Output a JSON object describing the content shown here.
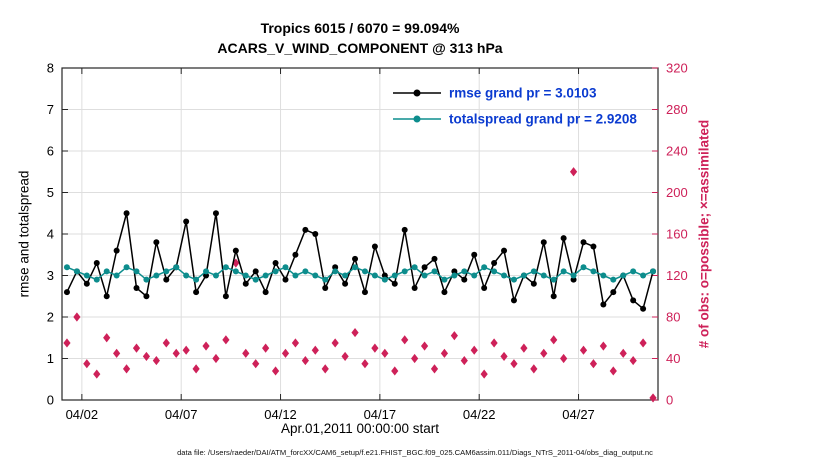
{
  "title": {
    "line1": "Tropics 6015 / 6070 = 99.094%",
    "line2": "ACARS_V_WIND_COMPONENT @ 313 hPa"
  },
  "footer": "data file: /Users/raeder/DAI/ATM_forcXX/CAM6_setup/f.e21.FHIST_BGC.f09_025.CAM6assim.011/Diags_NTrS_2011-04/obs_diag_output.nc",
  "colors": {
    "rmse": "#000000",
    "totalspread": "#0d8d8d",
    "obs": "#CE2159",
    "legend_text": "#0b3bd0",
    "grid": "#dedede",
    "axis": "#262626"
  },
  "legend": {
    "entries": [
      {
        "label": "rmse grand pr = 3.0103",
        "color": "#000000"
      },
      {
        "label": "totalspread grand pr = 2.9208",
        "color": "#0d8d8d"
      }
    ]
  },
  "chart_data": {
    "type": "line",
    "title": "Tropics 6015 / 6070 = 99.094%",
    "subtitle": "ACARS_V_WIND_COMPONENT @ 313 hPa",
    "xlabel": "Apr.01,2011 00:00:00 start",
    "ylabel_left": "rmse and totalspread",
    "ylabel_right": "# of obs: o=possible; ×=assimilated",
    "xlim_days_of_april": [
      1,
      31
    ],
    "x_ticks": {
      "values": [
        2,
        7,
        12,
        17,
        22,
        27
      ],
      "labels": [
        "04/02",
        "04/07",
        "04/12",
        "04/17",
        "04/22",
        "04/27"
      ]
    },
    "ylim_left": [
      0,
      8
    ],
    "yticks_left": [
      0,
      1,
      2,
      3,
      4,
      5,
      6,
      7,
      8
    ],
    "ylim_right": [
      0,
      320
    ],
    "yticks_right": [
      0,
      40,
      80,
      120,
      160,
      200,
      240,
      280,
      320
    ],
    "grid": true,
    "legend_position": "top-center-inside",
    "x_days": [
      1.25,
      1.75,
      2.25,
      2.75,
      3.25,
      3.75,
      4.25,
      4.75,
      5.25,
      5.75,
      6.25,
      6.75,
      7.25,
      7.75,
      8.25,
      8.75,
      9.25,
      9.75,
      10.25,
      10.75,
      11.25,
      11.75,
      12.25,
      12.75,
      13.25,
      13.75,
      14.25,
      14.75,
      15.25,
      15.75,
      16.25,
      16.75,
      17.25,
      17.75,
      18.25,
      18.75,
      19.25,
      19.75,
      20.25,
      20.75,
      21.25,
      21.75,
      22.25,
      22.75,
      23.25,
      23.75,
      24.25,
      24.75,
      25.25,
      25.75,
      26.25,
      26.75,
      27.25,
      27.75,
      28.25,
      28.75,
      29.25,
      29.75,
      30.25,
      30.75
    ],
    "series": [
      {
        "name": "rmse",
        "grand_pr": 3.0103,
        "color": "#000000",
        "values": [
          2.6,
          3.1,
          2.8,
          3.3,
          2.5,
          3.6,
          4.5,
          2.7,
          2.5,
          3.8,
          2.9,
          3.2,
          4.3,
          2.6,
          3.0,
          4.5,
          2.5,
          3.6,
          2.8,
          3.1,
          2.6,
          3.3,
          2.9,
          3.5,
          4.1,
          4.0,
          2.7,
          3.2,
          2.8,
          3.4,
          2.6,
          3.7,
          3.0,
          2.8,
          4.1,
          2.7,
          3.2,
          3.4,
          2.6,
          3.1,
          2.9,
          3.5,
          2.7,
          3.3,
          3.6,
          2.4,
          3.0,
          2.8,
          3.8,
          2.5,
          3.9,
          2.9,
          3.8,
          3.7,
          2.3,
          2.6,
          3.0,
          2.4,
          2.2,
          3.1
        ]
      },
      {
        "name": "totalspread",
        "grand_pr": 2.9208,
        "color": "#0d8d8d",
        "values": [
          3.2,
          3.1,
          3.0,
          2.9,
          3.1,
          3.0,
          3.2,
          3.1,
          2.9,
          3.0,
          3.1,
          3.2,
          3.0,
          2.9,
          3.1,
          3.0,
          3.2,
          3.1,
          3.0,
          2.9,
          3.0,
          3.1,
          3.2,
          3.0,
          3.1,
          3.0,
          2.9,
          3.1,
          3.0,
          3.2,
          3.1,
          3.0,
          2.9,
          3.0,
          3.1,
          3.2,
          3.0,
          3.1,
          2.9,
          3.0,
          3.1,
          3.0,
          3.2,
          3.1,
          3.0,
          2.9,
          3.0,
          3.1,
          3.0,
          2.9,
          3.1,
          3.0,
          3.2,
          3.1,
          3.0,
          2.9,
          3.0,
          3.1,
          3.0,
          3.1
        ]
      }
    ],
    "obs_assimilated": {
      "marker": "diamond",
      "color": "#CE2159",
      "axis": "right",
      "counts": [
        55,
        80,
        35,
        25,
        60,
        45,
        30,
        50,
        42,
        38,
        55,
        45,
        48,
        30,
        52,
        40,
        58,
        132,
        45,
        35,
        50,
        28,
        45,
        55,
        38,
        48,
        30,
        55,
        42,
        65,
        35,
        50,
        45,
        28,
        58,
        40,
        52,
        30,
        45,
        62,
        38,
        48,
        25,
        55,
        42,
        35,
        50,
        30,
        45,
        58,
        40,
        220,
        48,
        35,
        52,
        28,
        45,
        38,
        55,
        2
      ]
    }
  }
}
